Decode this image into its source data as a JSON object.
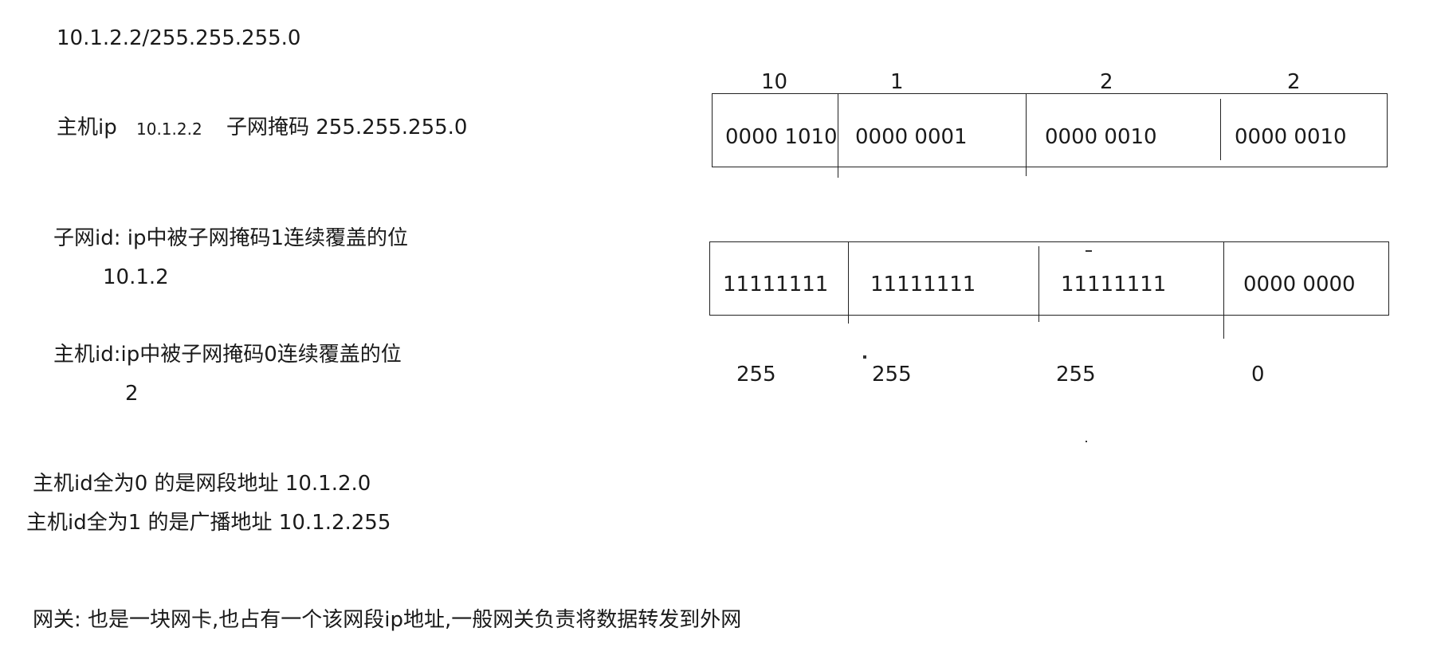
{
  "left": {
    "cidr": "10.1.2.2/255.255.255.0",
    "host_ip_label": "主机ip",
    "host_ip_value": "10.1.2.2",
    "mask_label": "子网掩码 255.255.255.0",
    "subnet_id_def": "子网id: ip中被子网掩码1连续覆盖的位",
    "subnet_id_value": "10.1.2",
    "host_id_def": "主机id:ip中被子网掩码0连续覆盖的位",
    "host_id_value": "2",
    "network_addr": "主机id全为0 的是网段地址 10.1.2.0",
    "broadcast_addr": "主机id全为1 的是广播地址  10.1.2.255",
    "gateway": "网关: 也是一块网卡,也占有一个该网段ip地址,一般网关负责将数据转发到外网"
  },
  "ip_table": {
    "headers": [
      "10",
      "1",
      "2",
      "2"
    ],
    "binary": [
      "0000 1010",
      "0000 0001",
      "0000 0010",
      "0000 0010"
    ]
  },
  "mask_table": {
    "binary": [
      "11111111",
      "11111111",
      "11111111",
      "0000 0000"
    ],
    "decimal": [
      "255",
      "255",
      "255",
      "0"
    ]
  }
}
